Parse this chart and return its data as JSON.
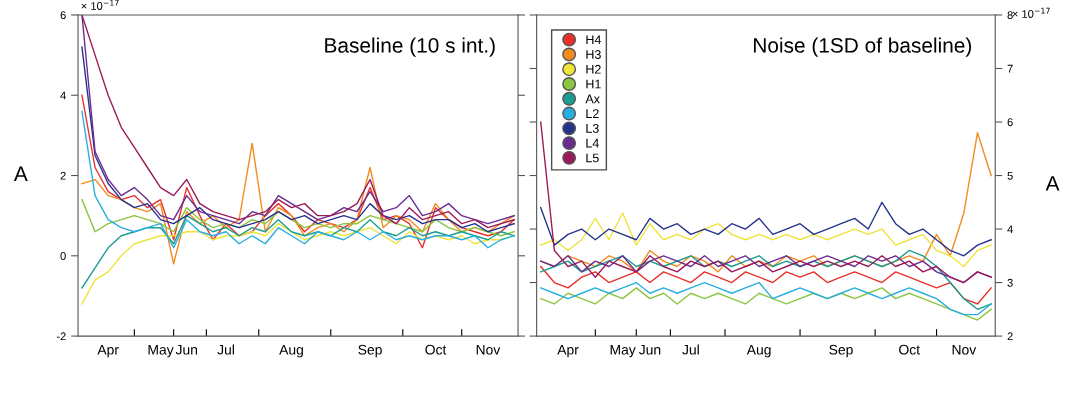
{
  "chart_data": [
    {
      "type": "line",
      "title": "Baseline (10 s int.)",
      "ylabel": "A",
      "legend": false,
      "grid": false,
      "marker": "none",
      "line_style": "solid",
      "categories": [
        null,
        null,
        "Apr",
        null,
        null,
        null,
        "May",
        null,
        "Jun",
        null,
        null,
        "Jul",
        null,
        null,
        null,
        null,
        "Aug",
        null,
        null,
        null,
        null,
        null,
        "Sep",
        null,
        null,
        null,
        null,
        "Oct",
        null,
        null,
        null,
        "Nov",
        null,
        null
      ],
      "ylim": [
        -2,
        6
      ],
      "yticks": [
        -2,
        0,
        2,
        4,
        6
      ],
      "annotations": [
        "× 10$^{−17}$"
      ],
      "series": [
        {
          "color": "#e8302a",
          "values": [
            4.0,
            2.2,
            1.6,
            1.4,
            1.5,
            1.2,
            1.4,
            0.4,
            1.7,
            1.0,
            0.4,
            0.8,
            0.5,
            0.6,
            1.0,
            1.3,
            1.0,
            0.6,
            0.9,
            0.8,
            0.7,
            0.9,
            1.7,
            0.9,
            1.0,
            0.8,
            0.2,
            1.2,
            0.9,
            0.7,
            0.6,
            0.5,
            0.6,
            0.9
          ]
        },
        {
          "color": "#f28c1e",
          "values": [
            1.8,
            1.9,
            1.5,
            1.4,
            1.2,
            1.1,
            1.3,
            -0.2,
            1.1,
            0.8,
            1.0,
            0.7,
            0.9,
            2.8,
            0.6,
            1.2,
            1.0,
            0.5,
            0.7,
            0.8,
            0.6,
            0.9,
            2.2,
            0.7,
            1.0,
            0.9,
            0.6,
            1.3,
            0.9,
            0.6,
            0.7,
            0.6,
            0.8,
            1.0
          ]
        },
        {
          "color": "#eee43a",
          "values": [
            -1.2,
            -0.6,
            -0.4,
            0.0,
            0.3,
            0.4,
            0.5,
            0.5,
            0.6,
            0.6,
            0.4,
            0.5,
            0.5,
            0.6,
            0.5,
            0.8,
            0.6,
            0.4,
            0.5,
            0.6,
            0.5,
            0.6,
            0.7,
            0.5,
            0.3,
            0.6,
            0.4,
            0.5,
            0.4,
            0.5,
            0.3,
            0.4,
            0.4,
            0.5
          ]
        },
        {
          "color": "#8cc540",
          "values": [
            1.4,
            0.6,
            0.8,
            0.9,
            1.0,
            0.9,
            0.8,
            0.6,
            1.2,
            0.9,
            0.7,
            0.8,
            0.7,
            0.9,
            0.8,
            1.1,
            0.9,
            0.7,
            0.8,
            0.7,
            0.8,
            0.8,
            1.0,
            0.9,
            0.8,
            0.7,
            0.6,
            0.9,
            0.7,
            0.6,
            0.7,
            0.6,
            0.5,
            0.6
          ]
        },
        {
          "color": "#1a9e8f",
          "values": [
            -0.8,
            -0.3,
            0.2,
            0.5,
            0.6,
            0.7,
            0.7,
            0.3,
            1.0,
            0.8,
            0.6,
            0.7,
            0.5,
            0.7,
            0.6,
            0.9,
            0.6,
            0.5,
            0.6,
            0.5,
            0.7,
            0.6,
            0.9,
            0.6,
            0.5,
            0.7,
            0.5,
            0.6,
            0.5,
            0.6,
            0.5,
            0.4,
            0.6,
            0.5
          ]
        },
        {
          "color": "#29aee0",
          "values": [
            3.6,
            1.5,
            0.9,
            0.7,
            0.6,
            0.7,
            0.8,
            0.2,
            0.9,
            0.6,
            0.5,
            0.6,
            0.3,
            0.5,
            0.3,
            0.7,
            0.5,
            0.3,
            0.6,
            0.5,
            0.4,
            0.6,
            0.4,
            0.6,
            0.4,
            0.5,
            0.4,
            0.5,
            0.5,
            0.4,
            0.5,
            0.2,
            0.4,
            0.5
          ]
        },
        {
          "color": "#26338c",
          "values": [
            5.2,
            2.5,
            1.8,
            1.4,
            1.2,
            1.3,
            0.9,
            0.8,
            1.0,
            1.2,
            0.9,
            0.8,
            0.7,
            0.8,
            0.9,
            1.1,
            0.9,
            1.0,
            0.8,
            0.9,
            1.0,
            0.9,
            1.3,
            1.0,
            0.9,
            1.0,
            0.8,
            0.9,
            0.9,
            0.7,
            0.8,
            0.6,
            0.7,
            0.8
          ]
        },
        {
          "color": "#6a2c91",
          "values": [
            6.0,
            2.6,
            1.9,
            1.5,
            1.7,
            1.4,
            1.0,
            0.9,
            1.5,
            1.1,
            1.0,
            0.9,
            0.8,
            1.1,
            1.0,
            1.5,
            1.3,
            1.1,
            0.9,
            1.0,
            1.2,
            1.1,
            1.6,
            1.1,
            1.2,
            1.5,
            1.0,
            1.1,
            1.3,
            1.0,
            0.9,
            0.8,
            0.9,
            1.0
          ]
        },
        {
          "color": "#9b1b5a",
          "values": [
            6.0,
            5.0,
            4.0,
            3.2,
            2.7,
            2.2,
            1.7,
            1.5,
            1.9,
            1.3,
            1.1,
            1.0,
            0.9,
            1.0,
            1.1,
            1.4,
            1.2,
            1.3,
            1.0,
            1.0,
            1.1,
            1.3,
            1.9,
            1.0,
            0.8,
            1.2,
            0.9,
            1.0,
            1.1,
            0.8,
            0.9,
            0.7,
            0.8,
            0.9
          ]
        }
      ]
    },
    {
      "type": "line",
      "title": "Noise (1SD of baseline)",
      "ylabel": "A",
      "legend": "top left",
      "grid": false,
      "marker": "none",
      "line_style": "solid",
      "categories": [
        null,
        null,
        "Apr",
        null,
        null,
        null,
        "May",
        null,
        "Jun",
        null,
        null,
        "Jul",
        null,
        null,
        null,
        null,
        "Aug",
        null,
        null,
        null,
        null,
        null,
        "Sep",
        null,
        null,
        null,
        null,
        "Oct",
        null,
        null,
        null,
        "Nov",
        null,
        null
      ],
      "ylim": [
        2,
        8
      ],
      "yticks": [
        2,
        3,
        4,
        5,
        6,
        7,
        8
      ],
      "annotations": [
        "× 10$^{−17}$"
      ],
      "series": [
        {
          "name": "H4",
          "color": "#e8302a",
          "values": [
            3.3,
            3.0,
            2.9,
            3.1,
            3.2,
            3.0,
            3.1,
            3.2,
            3.0,
            3.2,
            3.1,
            3.0,
            3.2,
            3.1,
            3.0,
            3.2,
            3.1,
            3.0,
            3.2,
            3.1,
            3.2,
            3.0,
            3.1,
            3.2,
            3.1,
            3.0,
            3.2,
            3.1,
            3.0,
            2.9,
            3.0,
            2.7,
            2.6,
            2.9
          ]
        },
        {
          "name": "H3",
          "color": "#f28c1e",
          "values": [
            3.4,
            3.3,
            3.5,
            3.4,
            3.3,
            3.5,
            3.4,
            3.2,
            3.6,
            3.4,
            3.3,
            3.5,
            3.4,
            3.2,
            3.5,
            3.3,
            3.4,
            3.3,
            3.5,
            3.4,
            3.5,
            3.3,
            3.4,
            3.5,
            3.4,
            3.3,
            3.4,
            3.5,
            3.4,
            3.9,
            3.5,
            4.3,
            5.8,
            5.0
          ]
        },
        {
          "name": "H2",
          "color": "#eee43a",
          "values": [
            3.7,
            3.8,
            3.6,
            3.8,
            4.2,
            3.8,
            4.3,
            3.7,
            4.1,
            3.8,
            3.9,
            3.8,
            4.0,
            4.1,
            3.9,
            3.8,
            3.9,
            3.8,
            3.9,
            3.8,
            3.9,
            3.8,
            3.9,
            4.0,
            3.9,
            4.0,
            3.7,
            3.8,
            3.9,
            3.6,
            3.5,
            3.3,
            3.6,
            3.7
          ]
        },
        {
          "name": "H1",
          "color": "#8cc540",
          "values": [
            2.7,
            2.6,
            2.8,
            2.7,
            2.6,
            2.8,
            2.7,
            2.9,
            2.7,
            2.8,
            2.6,
            2.8,
            2.7,
            2.8,
            2.7,
            2.6,
            2.8,
            2.7,
            2.6,
            2.7,
            2.8,
            2.7,
            2.8,
            2.7,
            2.8,
            2.9,
            2.7,
            2.8,
            2.7,
            2.6,
            2.5,
            2.4,
            2.3,
            2.5
          ]
        },
        {
          "name": "Ax",
          "color": "#1a9e8f",
          "values": [
            3.2,
            3.3,
            3.4,
            3.2,
            3.3,
            3.4,
            3.5,
            3.3,
            3.4,
            3.3,
            3.4,
            3.5,
            3.3,
            3.4,
            3.3,
            3.4,
            3.5,
            3.3,
            3.4,
            3.3,
            3.4,
            3.3,
            3.4,
            3.5,
            3.4,
            3.3,
            3.4,
            3.6,
            3.5,
            3.3,
            3.0,
            2.7,
            2.5,
            2.6
          ]
        },
        {
          "name": "L2",
          "color": "#29aee0",
          "values": [
            2.9,
            2.8,
            2.7,
            2.8,
            2.9,
            2.8,
            2.9,
            3.0,
            2.8,
            2.9,
            2.8,
            2.9,
            3.0,
            2.9,
            2.8,
            2.9,
            3.0,
            2.7,
            2.8,
            2.9,
            2.8,
            2.7,
            2.8,
            2.9,
            2.8,
            2.7,
            2.8,
            2.9,
            2.8,
            2.7,
            2.5,
            2.4,
            2.4,
            2.6
          ]
        },
        {
          "name": "L3",
          "color": "#26338c",
          "values": [
            4.4,
            3.7,
            3.9,
            4.0,
            3.8,
            4.0,
            3.9,
            3.8,
            4.2,
            4.0,
            4.1,
            3.9,
            4.0,
            3.9,
            4.1,
            4.0,
            4.2,
            3.9,
            4.0,
            4.1,
            3.9,
            4.0,
            4.1,
            4.2,
            4.0,
            4.5,
            4.1,
            3.9,
            4.0,
            3.8,
            3.6,
            3.5,
            3.7,
            3.8
          ]
        },
        {
          "name": "L4",
          "color": "#6a2c91",
          "values": [
            3.4,
            3.3,
            3.5,
            3.2,
            3.4,
            3.3,
            3.5,
            3.2,
            3.4,
            3.5,
            3.4,
            3.3,
            3.5,
            3.3,
            3.4,
            3.5,
            3.3,
            3.4,
            3.5,
            3.3,
            3.4,
            3.5,
            3.4,
            3.3,
            3.5,
            3.4,
            3.5,
            3.3,
            3.4,
            3.2,
            3.1,
            3.0,
            3.2,
            3.1
          ]
        },
        {
          "name": "L5",
          "color": "#9b1b5a",
          "values": [
            6.0,
            3.6,
            3.3,
            3.4,
            3.1,
            3.4,
            3.3,
            3.2,
            3.5,
            3.3,
            3.2,
            3.4,
            3.3,
            3.4,
            3.2,
            3.3,
            3.4,
            3.2,
            3.3,
            3.4,
            3.3,
            3.4,
            3.3,
            3.4,
            3.3,
            3.5,
            3.3,
            3.4,
            3.2,
            3.3,
            3.1,
            3.0,
            3.2,
            3.1
          ]
        }
      ]
    }
  ]
}
